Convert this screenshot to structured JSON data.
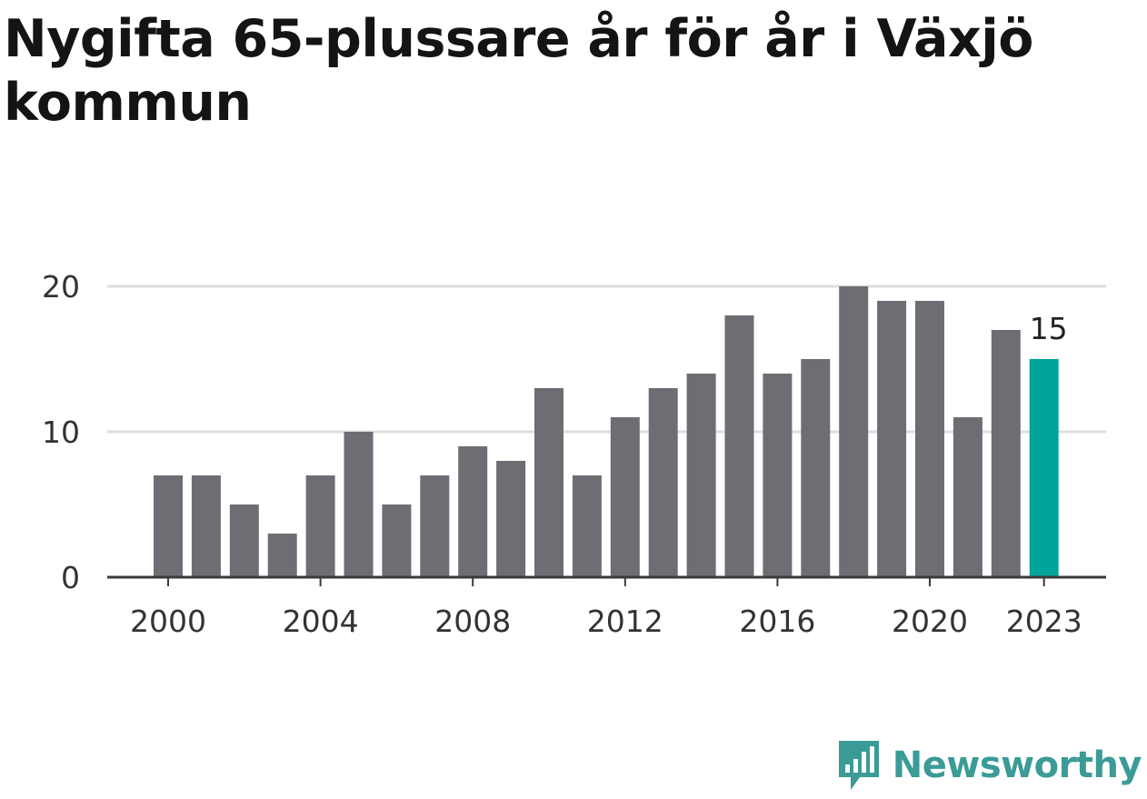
{
  "chart_data": {
    "type": "bar",
    "title": "Nygifta 65-plussare år för år i Växjö kommun",
    "categories": [
      "2000",
      "2001",
      "2002",
      "2003",
      "2004",
      "2005",
      "2006",
      "2007",
      "2008",
      "2009",
      "2010",
      "2011",
      "2012",
      "2013",
      "2014",
      "2015",
      "2016",
      "2017",
      "2018",
      "2019",
      "2020",
      "2021",
      "2022",
      "2023"
    ],
    "values": [
      7,
      7,
      5,
      3,
      7,
      10,
      5,
      7,
      9,
      8,
      13,
      7,
      11,
      13,
      14,
      18,
      14,
      15,
      20,
      19,
      19,
      11,
      17,
      15
    ],
    "x_tick_labels": [
      "2000",
      "2004",
      "2008",
      "2012",
      "2016",
      "2020",
      "2023"
    ],
    "y_ticks": [
      0,
      10,
      20
    ],
    "ylim": [
      0,
      20
    ],
    "grid": true,
    "highlight": {
      "category": "2023",
      "label": "15",
      "color": "#00a49a"
    },
    "bar_color": "#6e6d73",
    "xlabel": "",
    "ylabel": ""
  },
  "brand": {
    "name": "Newsworthy",
    "color": "#3a9b97",
    "icon": "newsworthy-logo-icon"
  }
}
